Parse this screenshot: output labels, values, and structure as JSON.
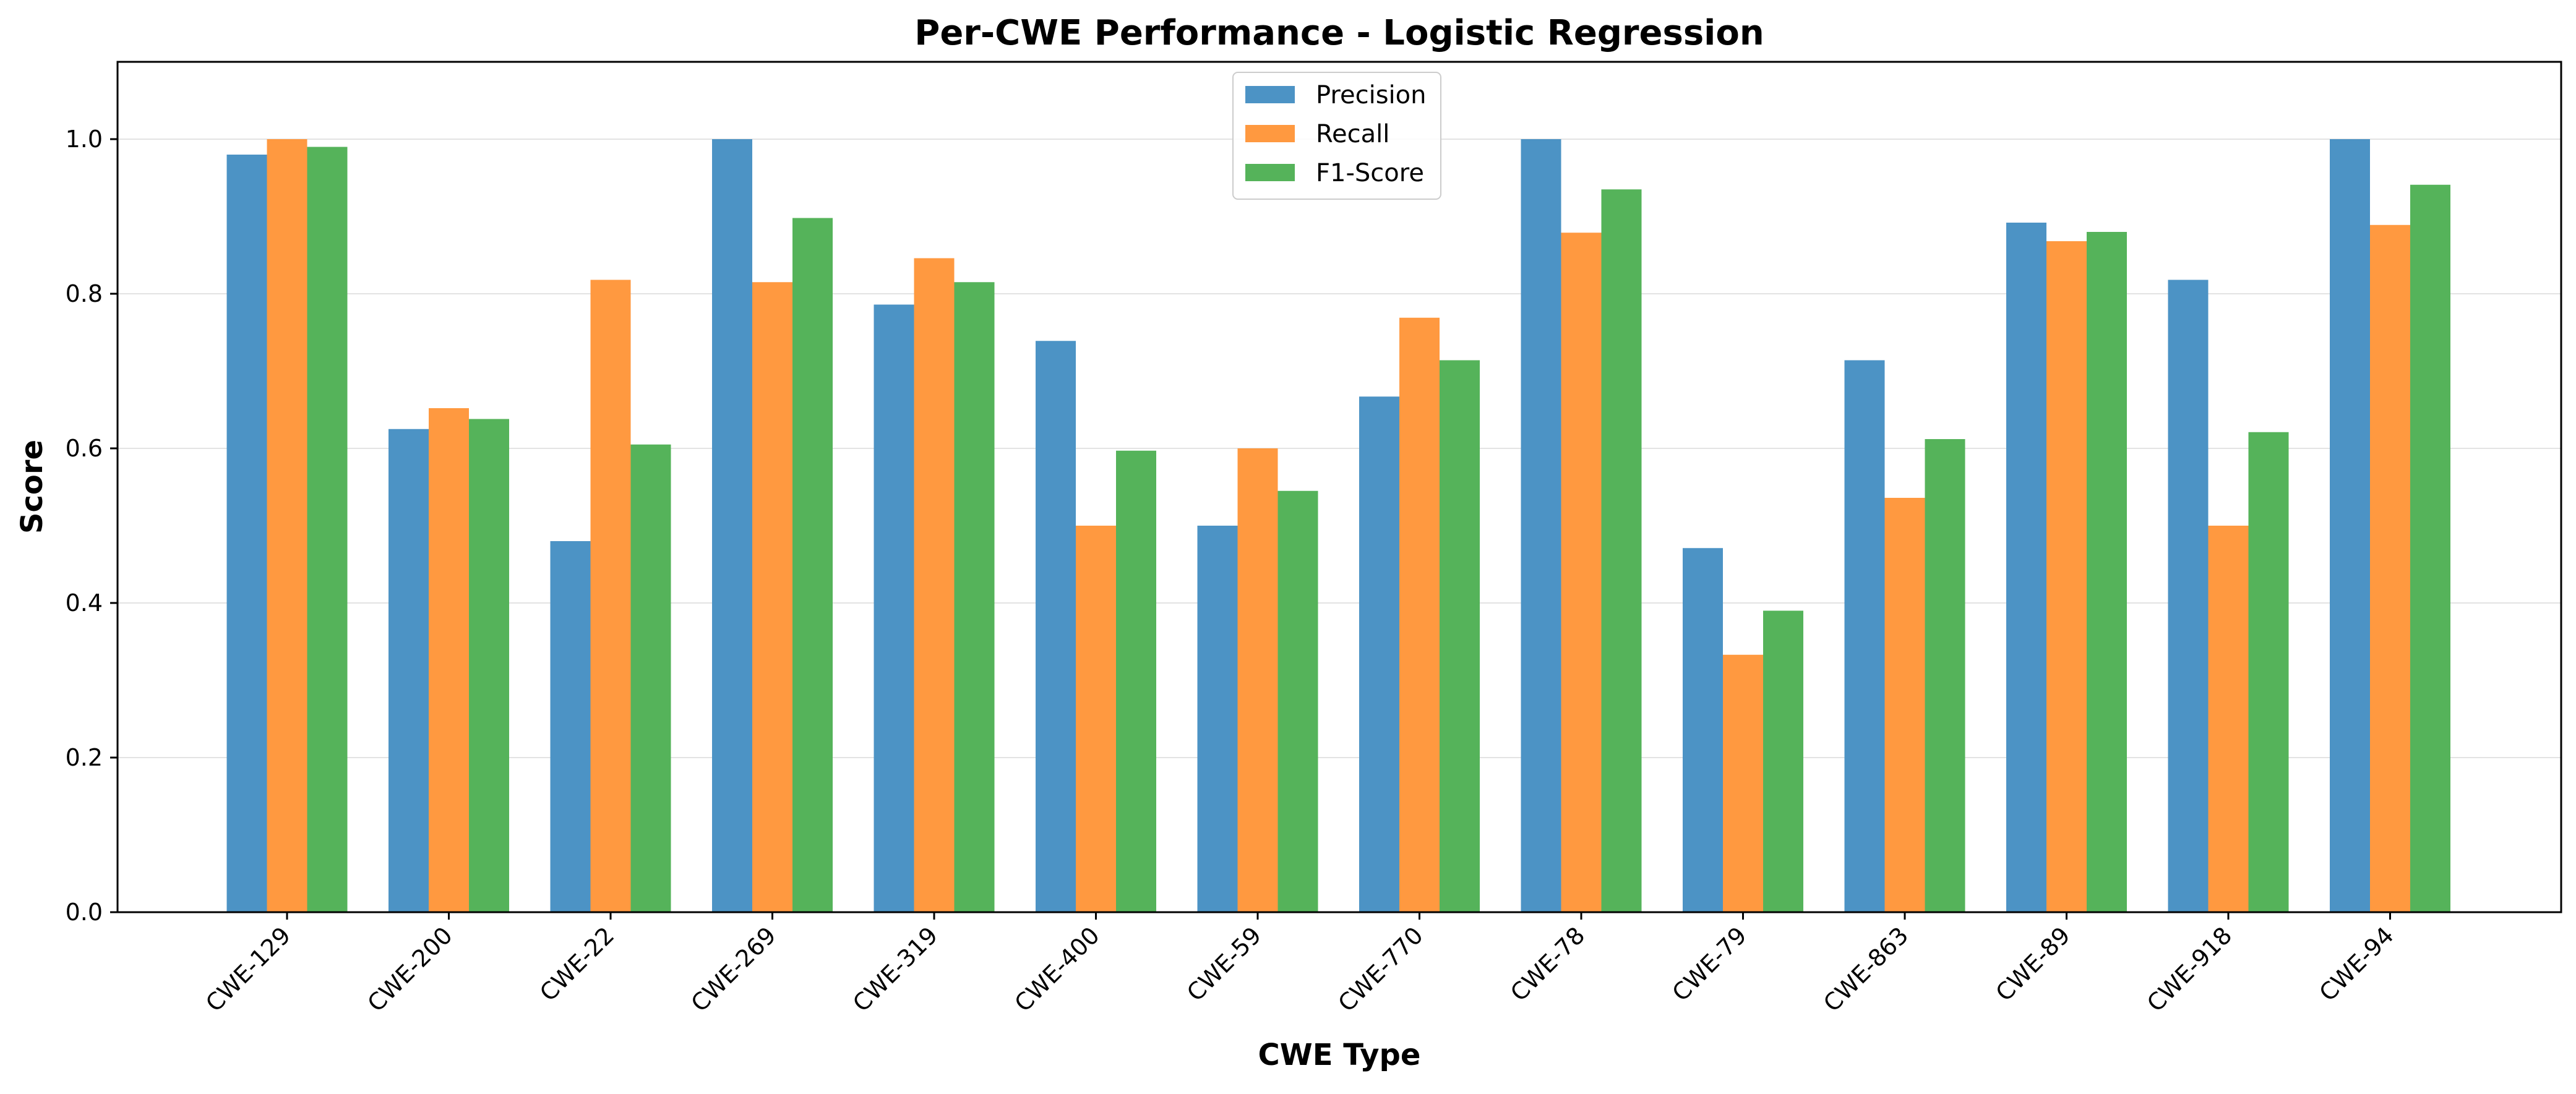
{
  "chart_data": {
    "type": "bar",
    "title": "Per-CWE Performance - Logistic Regression",
    "xlabel": "CWE Type",
    "ylabel": "Score",
    "ylim": [
      0,
      1.1
    ],
    "yticks": [
      0.0,
      0.2,
      0.4,
      0.6,
      0.8,
      1.0
    ],
    "ytick_labels": [
      "0.0",
      "0.2",
      "0.4",
      "0.6",
      "0.8",
      "1.0"
    ],
    "grid": "y",
    "legend_position": "top-center",
    "categories": [
      "CWE-129",
      "CWE-200",
      "CWE-22",
      "CWE-269",
      "CWE-319",
      "CWE-400",
      "CWE-59",
      "CWE-770",
      "CWE-78",
      "CWE-79",
      "CWE-863",
      "CWE-89",
      "CWE-918",
      "CWE-94"
    ],
    "series": [
      {
        "name": "Precision",
        "color": "#4c93c5",
        "values": [
          0.98,
          0.625,
          0.48,
          1.0,
          0.786,
          0.739,
          0.5,
          0.667,
          1.0,
          0.471,
          0.714,
          0.892,
          0.818,
          1.0
        ]
      },
      {
        "name": "Recall",
        "color": "#ff9940",
        "values": [
          1.0,
          0.652,
          0.818,
          0.815,
          0.846,
          0.5,
          0.6,
          0.769,
          0.879,
          0.333,
          0.536,
          0.868,
          0.5,
          0.889
        ]
      },
      {
        "name": "F1-Score",
        "color": "#55b35a",
        "values": [
          0.99,
          0.638,
          0.605,
          0.898,
          0.815,
          0.597,
          0.545,
          0.714,
          0.935,
          0.39,
          0.612,
          0.88,
          0.621,
          0.941
        ]
      }
    ]
  }
}
